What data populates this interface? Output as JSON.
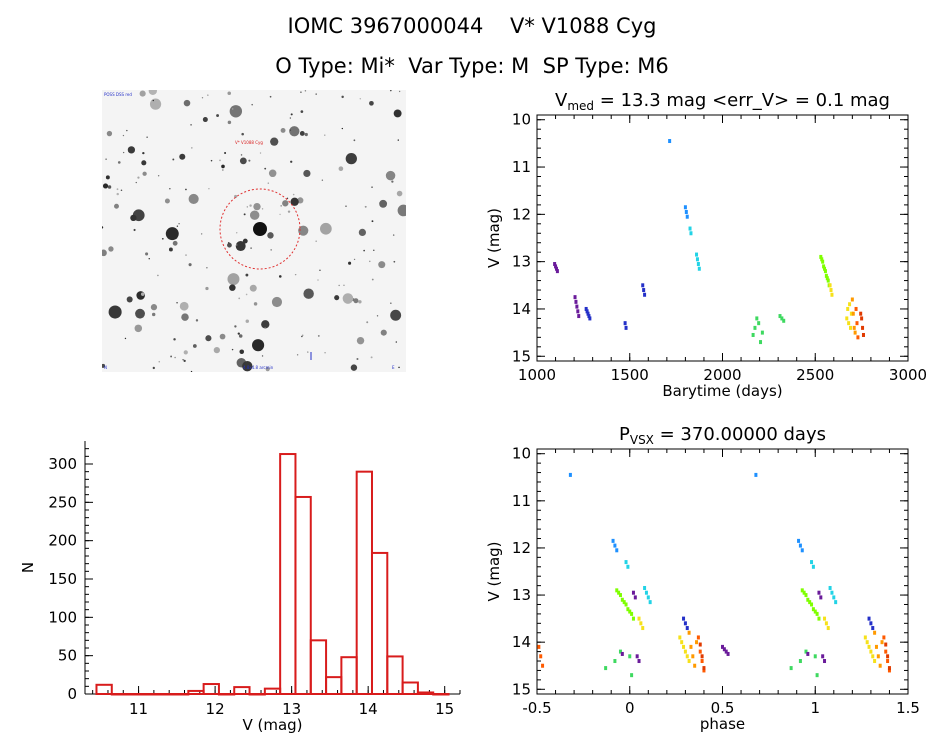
{
  "header": {
    "line1": "IOMC 3967000044    V* V1088 Cyg",
    "line2": "O Type: Mi*  Var Type: M  SP Type: M6"
  },
  "image": {
    "top_left_label": "POSS DSS red",
    "target_label": "V* V1088 Cyg",
    "bottom_label": "4.8x4.8 arcmin",
    "corner_left": "N",
    "corner_right": "E",
    "marker_color": "#e03030"
  },
  "colors": {
    "hist": "#d81c1c",
    "palette": [
      "#6a1b9a",
      "#2430c8",
      "#1e90ff",
      "#22d3e6",
      "#3ed960",
      "#7fff00",
      "#f6e11a",
      "#ff9a00",
      "#ff5a00",
      "#e03a00"
    ]
  },
  "chart_data": [
    {
      "type": "scatter",
      "name": "lightcurve",
      "title_main": "V",
      "title_sub": "med",
      "title_rest": " = 13.3 mag <err_V> = 0.1 mag",
      "xlabel": "Barytime (days)",
      "ylabel": "V (mag)",
      "xlim": [
        1000,
        3000
      ],
      "ylim": [
        15.1,
        9.9
      ],
      "xticks": [
        1000,
        1500,
        2000,
        2500,
        3000
      ],
      "yticks": [
        10,
        11,
        12,
        13,
        14,
        15
      ],
      "groups": [
        {
          "x": [
            1095,
            1100,
            1105,
            1110
          ],
          "y": [
            13.05,
            13.1,
            13.15,
            13.2
          ],
          "color_index": 0
        },
        {
          "x": [
            1205,
            1210,
            1215,
            1220,
            1225
          ],
          "y": [
            13.75,
            13.85,
            13.95,
            14.05,
            14.15
          ],
          "color_index": 0
        },
        {
          "x": [
            1265,
            1270,
            1275,
            1280,
            1285
          ],
          "y": [
            14.0,
            14.05,
            14.1,
            14.15,
            14.2
          ],
          "color_index": 1
        },
        {
          "x": [
            1475,
            1480
          ],
          "y": [
            14.3,
            14.4
          ],
          "color_index": 1
        },
        {
          "x": [
            1570,
            1575,
            1580
          ],
          "y": [
            13.5,
            13.6,
            13.7
          ],
          "color_index": 1
        },
        {
          "x": [
            1715
          ],
          "y": [
            10.45
          ],
          "color_index": 2
        },
        {
          "x": [
            1800,
            1805,
            1810
          ],
          "y": [
            11.85,
            11.95,
            12.05
          ],
          "color_index": 2
        },
        {
          "x": [
            1825,
            1830
          ],
          "y": [
            12.3,
            12.4
          ],
          "color_index": 3
        },
        {
          "x": [
            1860,
            1865,
            1870,
            1875
          ],
          "y": [
            12.85,
            12.95,
            13.05,
            13.15
          ],
          "color_index": 3
        },
        {
          "x": [
            2165,
            2175,
            2185,
            2195,
            2205,
            2215
          ],
          "y": [
            14.55,
            14.4,
            14.2,
            14.3,
            14.7,
            14.5
          ],
          "color_index": 4
        },
        {
          "x": [
            2310,
            2320,
            2330
          ],
          "y": [
            14.15,
            14.2,
            14.25
          ],
          "color_index": 4
        },
        {
          "x": [
            2530,
            2535,
            2540,
            2545,
            2550,
            2555,
            2560,
            2565,
            2570,
            2575
          ],
          "y": [
            12.9,
            12.95,
            13.0,
            13.1,
            13.15,
            13.2,
            13.3,
            13.35,
            13.4,
            13.5
          ],
          "color_index": 5
        },
        {
          "x": [
            2580,
            2585,
            2590
          ],
          "y": [
            13.5,
            13.6,
            13.7
          ],
          "color_index": 6
        },
        {
          "x": [
            2670,
            2675,
            2680,
            2685,
            2690,
            2695
          ],
          "y": [
            14.2,
            14.0,
            14.3,
            13.9,
            14.4,
            14.1
          ],
          "color_index": 6
        },
        {
          "x": [
            2700,
            2705,
            2710,
            2715
          ],
          "y": [
            13.8,
            14.1,
            14.4,
            14.5
          ],
          "color_index": 7
        },
        {
          "x": [
            2720,
            2725,
            2730
          ],
          "y": [
            14.0,
            14.3,
            14.6
          ],
          "color_index": 8
        },
        {
          "x": [
            2745,
            2750,
            2755,
            2760
          ],
          "y": [
            14.1,
            14.2,
            14.4,
            14.55
          ],
          "color_index": 9
        }
      ]
    },
    {
      "type": "bar",
      "name": "histogram",
      "xlabel": "V (mag)",
      "ylabel": "N",
      "xlim": [
        10.3,
        15.2
      ],
      "ylim": [
        0,
        330
      ],
      "xticks": [
        11,
        12,
        13,
        14,
        15
      ],
      "yticks": [
        0,
        50,
        100,
        150,
        200,
        250,
        300
      ],
      "bin_width": 0.2,
      "bin_left": [
        10.45,
        10.65,
        10.85,
        11.05,
        11.25,
        11.45,
        11.65,
        11.85,
        12.05,
        12.25,
        12.45,
        12.65,
        12.85,
        13.05,
        13.25,
        13.45,
        13.65,
        13.85,
        14.05,
        14.25,
        14.45,
        14.65,
        14.85
      ],
      "counts": [
        12,
        0,
        0,
        0,
        0,
        0,
        4,
        13,
        0,
        9,
        0,
        7,
        313,
        257,
        70,
        22,
        48,
        290,
        184,
        49,
        15,
        2,
        0
      ]
    },
    {
      "type": "scatter",
      "name": "phased",
      "title_main": "P",
      "title_sub": "VSX",
      "title_rest": " = 370.00000 days",
      "xlabel": "phase",
      "ylabel": "V (mag)",
      "xlim": [
        -0.5,
        1.5
      ],
      "ylim": [
        15.1,
        9.9
      ],
      "xticks": [
        -0.5,
        0.0,
        0.5,
        1.0,
        1.5
      ],
      "yticks": [
        10,
        11,
        12,
        13,
        14,
        15
      ],
      "groups": [
        {
          "x": [
            -0.32,
            0.68
          ],
          "y": [
            10.45,
            10.45
          ],
          "color_index": 2
        },
        {
          "x": [
            -0.09,
            -0.08,
            -0.07,
            0.91,
            0.92,
            0.93
          ],
          "y": [
            11.85,
            11.95,
            12.05,
            11.85,
            11.95,
            12.05
          ],
          "color_index": 2
        },
        {
          "x": [
            -0.02,
            -0.01,
            0.98,
            0.99
          ],
          "y": [
            12.3,
            12.4,
            12.3,
            12.4
          ],
          "color_index": 3
        },
        {
          "x": [
            0.08,
            0.09,
            0.1,
            0.11,
            1.08,
            1.09,
            1.1,
            1.11
          ],
          "y": [
            12.85,
            12.95,
            13.05,
            13.15,
            12.85,
            12.95,
            13.05,
            13.15
          ],
          "color_index": 3
        },
        {
          "x": [
            -0.07,
            -0.06,
            -0.05,
            -0.04,
            -0.03,
            -0.02,
            -0.01,
            0.0,
            0.01,
            0.02,
            0.93,
            0.94,
            0.95,
            0.96,
            0.97,
            0.98,
            0.99,
            1.0,
            1.01,
            1.02
          ],
          "y": [
            12.9,
            12.95,
            13.0,
            13.1,
            13.15,
            13.2,
            13.3,
            13.35,
            13.4,
            13.5,
            12.9,
            12.95,
            13.0,
            13.1,
            13.15,
            13.2,
            13.3,
            13.35,
            13.4,
            13.5
          ],
          "color_index": 5
        },
        {
          "x": [
            0.05,
            0.06,
            0.07,
            1.05,
            1.06,
            1.07
          ],
          "y": [
            13.5,
            13.6,
            13.7,
            13.5,
            13.6,
            13.7
          ],
          "color_index": 6
        },
        {
          "x": [
            0.02,
            0.03,
            1.02,
            1.03
          ],
          "y": [
            12.95,
            13.05,
            12.95,
            13.05
          ],
          "color_index": 0
        },
        {
          "x": [
            0.04,
            0.05,
            1.04,
            1.05
          ],
          "y": [
            14.3,
            14.4,
            14.3,
            14.4
          ],
          "color_index": 0
        },
        {
          "x": [
            0.29,
            0.3,
            0.31,
            1.29,
            1.3,
            1.31
          ],
          "y": [
            13.5,
            13.6,
            13.7,
            13.5,
            13.6,
            13.7
          ],
          "color_index": 1
        },
        {
          "x": [
            0.27,
            0.28,
            0.29,
            0.3,
            0.31,
            0.32,
            1.27,
            1.28,
            1.29,
            1.3,
            1.31,
            1.32
          ],
          "y": [
            13.9,
            14.0,
            14.1,
            14.2,
            14.3,
            14.4,
            13.9,
            14.0,
            14.1,
            14.2,
            14.3,
            14.4
          ],
          "color_index": 6
        },
        {
          "x": [
            0.32,
            0.33,
            0.34,
            0.35,
            0.36,
            1.32,
            1.33,
            1.34,
            1.35,
            1.36
          ],
          "y": [
            13.8,
            14.1,
            14.3,
            14.5,
            14.0,
            13.8,
            14.1,
            14.3,
            14.5,
            14.0
          ],
          "color_index": 7
        },
        {
          "x": [
            0.37,
            0.38,
            0.39,
            0.4,
            1.37,
            1.38,
            1.39,
            1.4
          ],
          "y": [
            13.9,
            14.2,
            14.4,
            14.6,
            13.9,
            14.2,
            14.4,
            14.6
          ],
          "color_index": 8
        },
        {
          "x": [
            0.38,
            0.39,
            0.4,
            1.38,
            1.39,
            1.4
          ],
          "y": [
            14.05,
            14.3,
            14.55,
            14.05,
            14.3,
            14.55
          ],
          "color_index": 9
        },
        {
          "x": [
            0.5,
            0.51,
            0.52,
            0.53
          ],
          "y": [
            14.1,
            14.15,
            14.2,
            14.25
          ],
          "color_index": 0
        },
        {
          "x": [
            -0.49,
            -0.48,
            -0.47
          ],
          "y": [
            14.1,
            14.3,
            14.5
          ],
          "color_index": 8
        },
        {
          "x": [
            -0.13,
            -0.08,
            -0.05,
            0.0,
            0.01,
            0.87,
            0.92,
            0.95,
            1.0,
            1.01
          ],
          "y": [
            14.55,
            14.4,
            14.2,
            14.3,
            14.7,
            14.55,
            14.4,
            14.2,
            14.3,
            14.7
          ],
          "color_index": 4
        },
        {
          "x": [
            -0.04,
            0.96
          ],
          "y": [
            14.25,
            14.25
          ],
          "color_index": 0
        }
      ]
    }
  ]
}
